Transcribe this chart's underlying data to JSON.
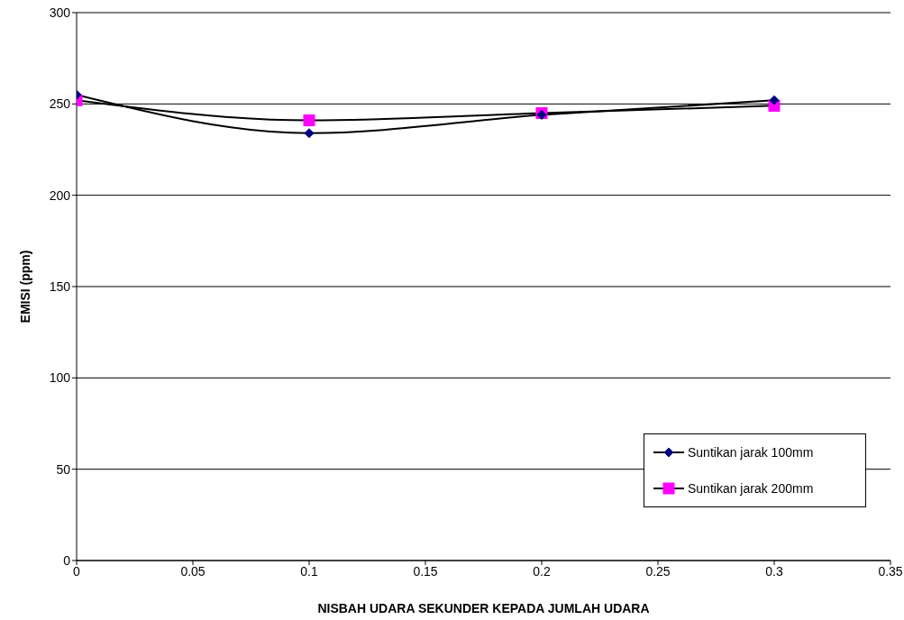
{
  "chart_data": {
    "type": "line",
    "xlabel": "NISBAH UDARA SEKUNDER KEPADA JUMLAH UDARA",
    "ylabel": "EMISI (ppm)",
    "x": [
      0,
      0.1,
      0.2,
      0.3
    ],
    "series": [
      {
        "name": "Suntikan jarak 100mm",
        "color": "#000080",
        "marker": "diamond",
        "values": [
          255,
          234,
          244,
          252
        ]
      },
      {
        "name": "Suntikan jarak 200mm",
        "color": "#ff00ff",
        "marker": "square",
        "values": [
          252,
          241,
          245,
          249
        ]
      }
    ],
    "xlim": [
      0,
      0.35
    ],
    "xticks": [
      0,
      0.05,
      0.1,
      0.15,
      0.2,
      0.25,
      0.3,
      0.35
    ],
    "ylim": [
      0,
      300
    ],
    "yticks": [
      0,
      50,
      100,
      150,
      200,
      250,
      300
    ],
    "grid": "y",
    "legend": "bottom right",
    "line_style": "solid"
  }
}
